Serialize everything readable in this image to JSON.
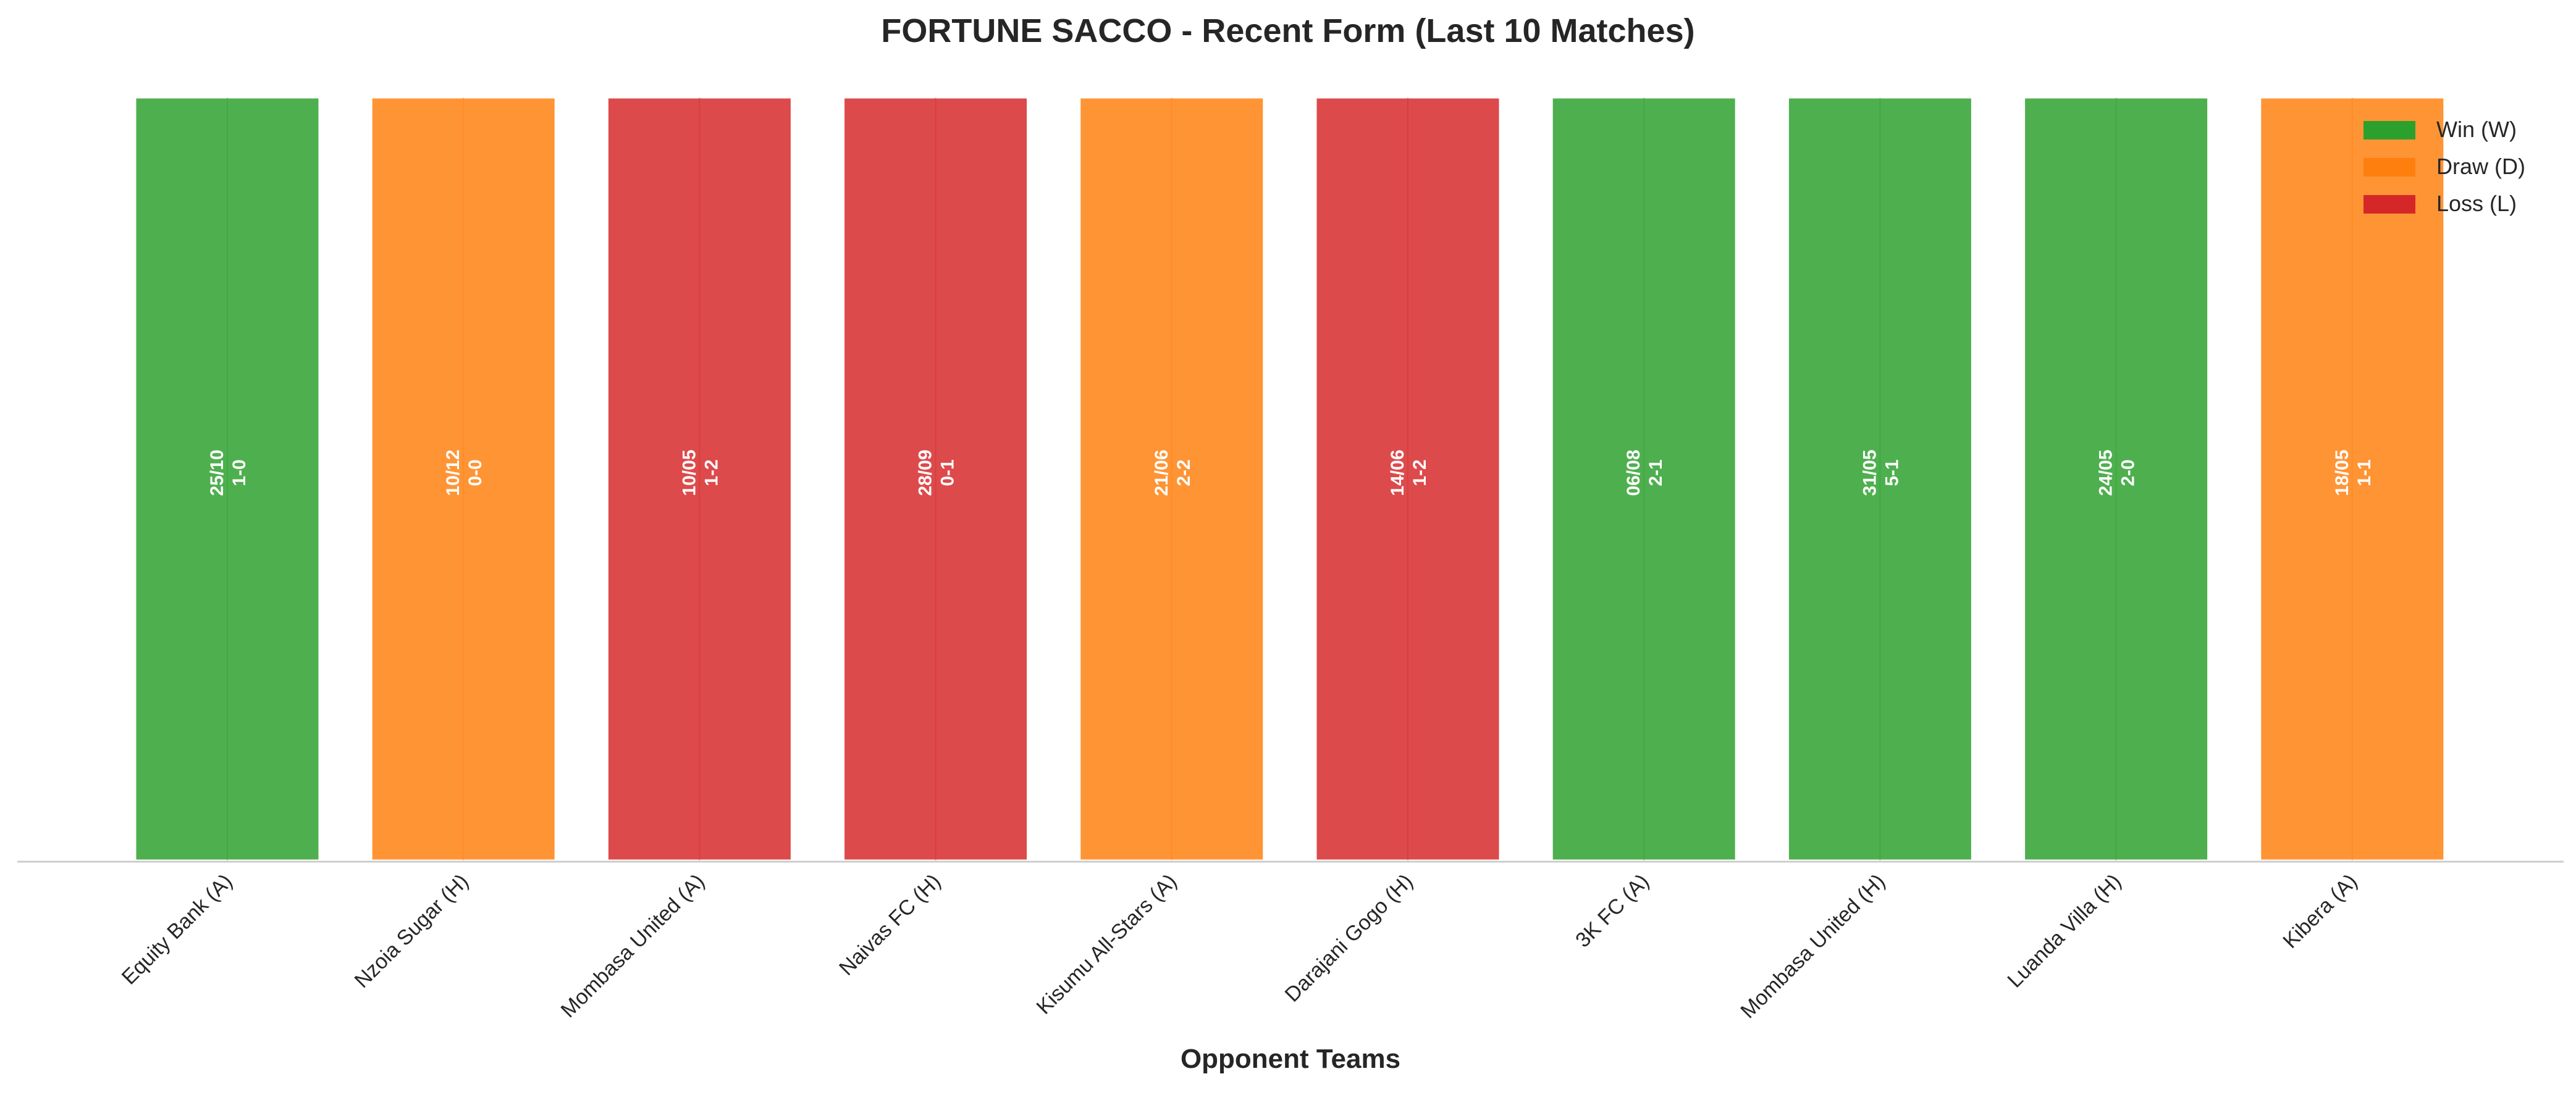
{
  "chart_data": {
    "type": "bar",
    "title": "FORTUNE SACCO - Recent Form (Last 10 Matches)",
    "xlabel": "Opponent Teams",
    "ylabel": "",
    "categories": [
      "Equity Bank (A)",
      "Nzoia Sugar (H)",
      "Mombasa United (A)",
      "Naivas FC (H)",
      "Kisumu All-Stars (A)",
      "Darajani Gogo (H)",
      "3K FC (A)",
      "Mombasa United (H)",
      "Luanda Villa (H)",
      "Kibera (A)"
    ],
    "values": [
      1,
      1,
      1,
      1,
      1,
      1,
      1,
      1,
      1,
      1
    ],
    "ylim": [
      0,
      1
    ],
    "grid": false,
    "matches": [
      {
        "opponent": "Equity Bank (A)",
        "date": "25/10",
        "score": "1-0",
        "result": "W"
      },
      {
        "opponent": "Nzoia Sugar (H)",
        "date": "10/12",
        "score": "0-0",
        "result": "D"
      },
      {
        "opponent": "Mombasa United (A)",
        "date": "10/05",
        "score": "1-2",
        "result": "L"
      },
      {
        "opponent": "Naivas FC (H)",
        "date": "28/09",
        "score": "0-1",
        "result": "L"
      },
      {
        "opponent": "Kisumu All-Stars (A)",
        "date": "21/06",
        "score": "2-2",
        "result": "D"
      },
      {
        "opponent": "Darajani Gogo (H)",
        "date": "14/06",
        "score": "1-2",
        "result": "L"
      },
      {
        "opponent": "3K FC (A)",
        "date": "06/08",
        "score": "2-1",
        "result": "W"
      },
      {
        "opponent": "Mombasa United (H)",
        "date": "31/05",
        "score": "5-1",
        "result": "W"
      },
      {
        "opponent": "Luanda Villa (H)",
        "date": "24/05",
        "score": "2-0",
        "result": "W"
      },
      {
        "opponent": "Kibera (A)",
        "date": "18/05",
        "score": "1-1",
        "result": "D"
      }
    ],
    "legend": {
      "placement": "top-right",
      "entries": [
        {
          "key": "W",
          "label": "Win (W)",
          "color": "#2ca02c"
        },
        {
          "key": "D",
          "label": "Draw (D)",
          "color": "#ff7f0e"
        },
        {
          "key": "L",
          "label": "Loss (L)",
          "color": "#d62728"
        }
      ]
    },
    "colors": {
      "W": "#2ca02c",
      "D": "#ff7f0e",
      "L": "#d62728",
      "bar_label_text": "#ffffff",
      "axis_line": "#cccccc",
      "text": "#262626"
    }
  }
}
